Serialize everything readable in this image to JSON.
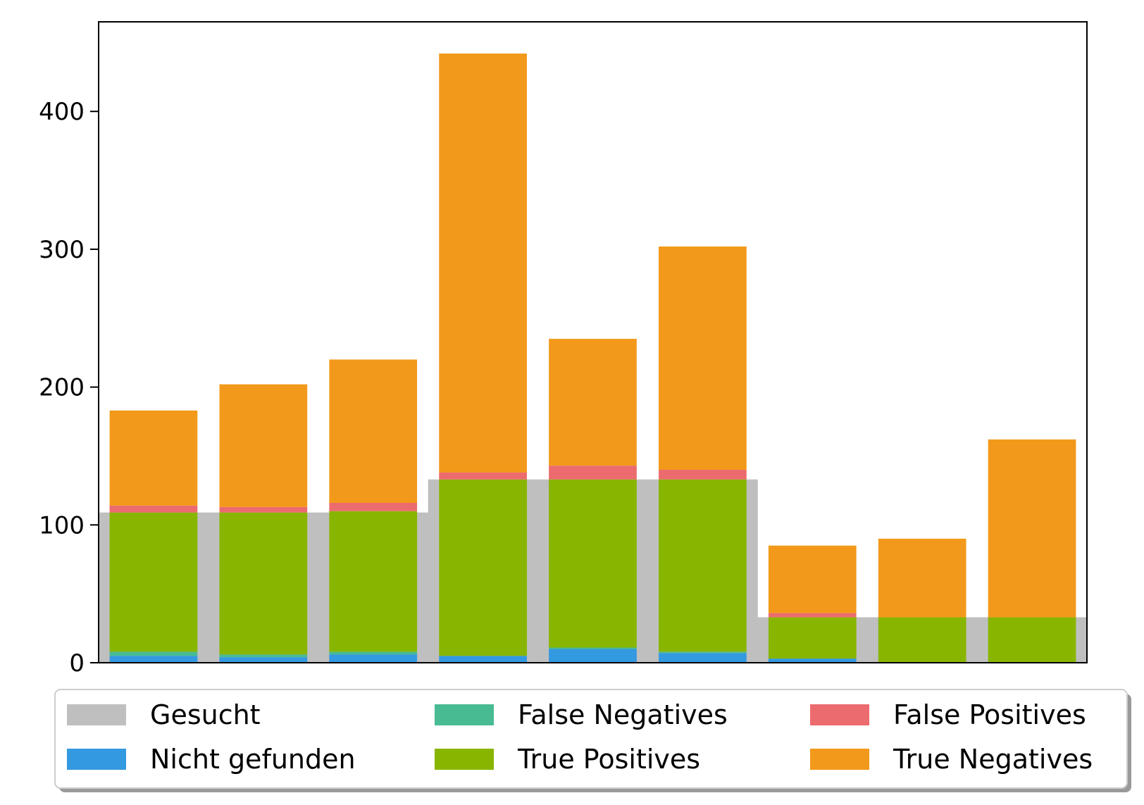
{
  "chart_data": {
    "type": "bar",
    "stacked": true,
    "title": "",
    "xlabel": "",
    "ylabel": "",
    "ylim": [
      0,
      465
    ],
    "yticks": [
      0,
      100,
      200,
      300,
      400
    ],
    "grid": false,
    "legend_position": "bottom",
    "categories": [
      "",
      "",
      "",
      "",
      "",
      "",
      "",
      "",
      ""
    ],
    "background_series": {
      "name": "Gesucht",
      "color": "#bfbfbf",
      "values": [
        109,
        109,
        109,
        133,
        133,
        133,
        33,
        33,
        33
      ]
    },
    "series": [
      {
        "name": "Nicht gefunden",
        "color": "#3399e0",
        "values": [
          5,
          4,
          6,
          5,
          10,
          7,
          3,
          0,
          0
        ]
      },
      {
        "name": "False Negatives",
        "color": "#48bb93",
        "values": [
          3,
          2,
          2,
          0,
          1,
          1,
          0,
          0,
          0
        ]
      },
      {
        "name": "True Positives",
        "color": "#88b500",
        "values": [
          101,
          103,
          102,
          128,
          122,
          125,
          30,
          33,
          33
        ]
      },
      {
        "name": "False Positives",
        "color": "#ec6b6e",
        "values": [
          5,
          4,
          6,
          5,
          10,
          7,
          3,
          0,
          0
        ]
      },
      {
        "name": "True Negatives",
        "color": "#f2991b",
        "values": [
          69,
          89,
          104,
          304,
          92,
          162,
          49,
          57,
          129
        ]
      }
    ],
    "legend_entries": [
      {
        "name": "Gesucht",
        "color": "#bfbfbf"
      },
      {
        "name": "False Negatives",
        "color": "#48bb93"
      },
      {
        "name": "False Positives",
        "color": "#ec6b6e"
      },
      {
        "name": "Nicht gefunden",
        "color": "#3399e0"
      },
      {
        "name": "True Positives",
        "color": "#88b500"
      },
      {
        "name": "True Negatives",
        "color": "#f2991b"
      }
    ]
  }
}
